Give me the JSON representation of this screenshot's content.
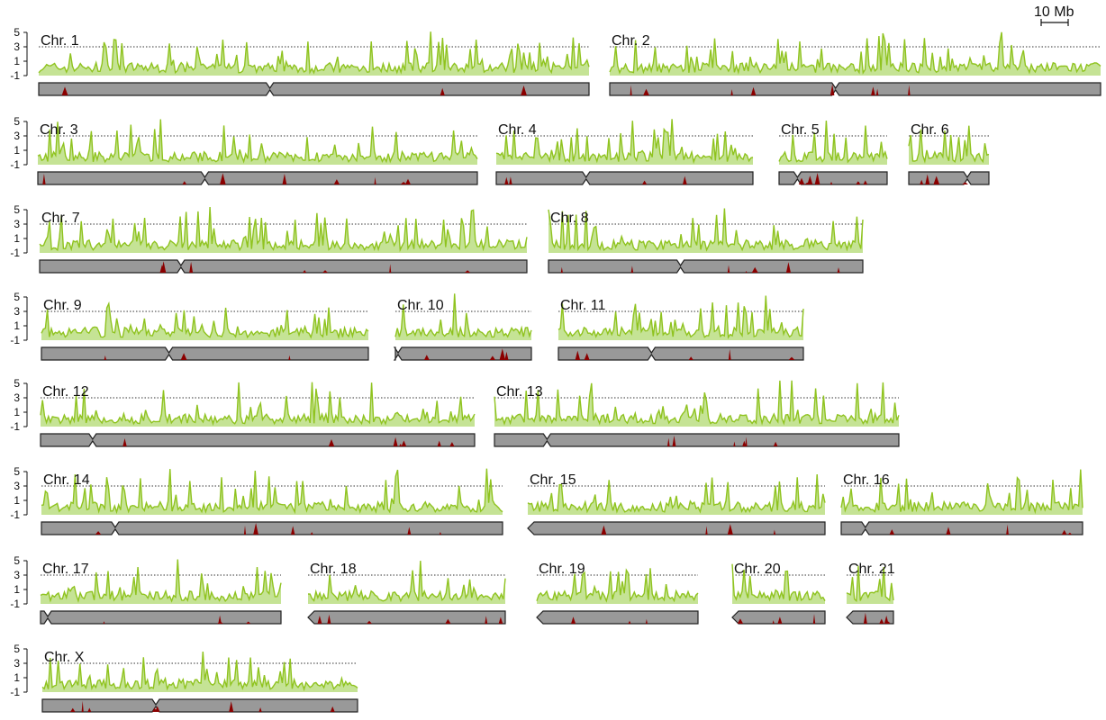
{
  "figure": {
    "scale_bar_label": "10 Mb",
    "y_axis_ticks": [
      "5",
      "3",
      "1",
      "-1"
    ],
    "colors": {
      "signal_line": "#8fc31f",
      "signal_fill": "#bfe08a",
      "ideogram_body": "#999999",
      "ideogram_outline": "#222222",
      "ideogram_marks": "#8b0000",
      "threshold_line": "#333333"
    },
    "threshold_value": 3,
    "y_range": [
      -1,
      5
    ]
  },
  "chromosomes": [
    {
      "label": "Chr. 1"
    },
    {
      "label": "Chr. 2"
    },
    {
      "label": "Chr. 3"
    },
    {
      "label": "Chr. 4"
    },
    {
      "label": "Chr. 5"
    },
    {
      "label": "Chr. 6"
    },
    {
      "label": "Chr. 7"
    },
    {
      "label": "Chr. 8"
    },
    {
      "label": "Chr. 9"
    },
    {
      "label": "Chr. 10"
    },
    {
      "label": "Chr. 11"
    },
    {
      "label": "Chr. 12"
    },
    {
      "label": "Chr. 13"
    },
    {
      "label": "Chr. 14"
    },
    {
      "label": "Chr. 15"
    },
    {
      "label": "Chr. 16"
    },
    {
      "label": "Chr. 17"
    },
    {
      "label": "Chr. 18"
    },
    {
      "label": "Chr. 19"
    },
    {
      "label": "Chr. 20"
    },
    {
      "label": "Chr. 21"
    },
    {
      "label": "Chr. X"
    }
  ]
}
